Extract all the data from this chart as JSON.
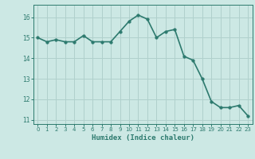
{
  "x": [
    0,
    1,
    2,
    3,
    4,
    5,
    6,
    7,
    8,
    9,
    10,
    11,
    12,
    13,
    14,
    15,
    16,
    17,
    18,
    19,
    20,
    21,
    22,
    23
  ],
  "y": [
    15.0,
    14.8,
    14.9,
    14.8,
    14.8,
    15.1,
    14.8,
    14.8,
    14.8,
    15.3,
    15.8,
    16.1,
    15.9,
    15.0,
    15.3,
    15.4,
    14.1,
    13.9,
    13.0,
    11.9,
    11.6,
    11.6,
    11.7,
    11.2
  ],
  "xlabel": "Humidex (Indice chaleur)",
  "xlim": [
    -0.5,
    23.5
  ],
  "ylim": [
    10.8,
    16.6
  ],
  "yticks": [
    11,
    12,
    13,
    14,
    15,
    16
  ],
  "xticks": [
    0,
    1,
    2,
    3,
    4,
    5,
    6,
    7,
    8,
    9,
    10,
    11,
    12,
    13,
    14,
    15,
    16,
    17,
    18,
    19,
    20,
    21,
    22,
    23
  ],
  "line_color": "#2d7a6e",
  "marker_color": "#2d7a6e",
  "bg_color": "#cce8e4",
  "grid_color": "#b0d0cc",
  "xlabel_color": "#2d7a6e",
  "tick_color": "#2d7a6e",
  "line_width": 1.2,
  "marker_size": 2.5
}
